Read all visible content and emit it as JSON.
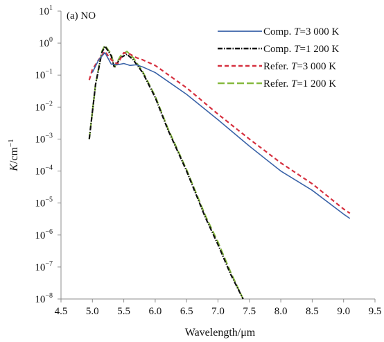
{
  "chart_data": {
    "type": "line",
    "panel_label": "(a) NO",
    "xlabel": "Wavelength/μm",
    "ylabel_main": "K",
    "ylabel_unit": "/cm",
    "ylabel_exp": "−1",
    "x_ticks": [
      4.5,
      5.0,
      5.5,
      6.0,
      6.5,
      7.0,
      7.5,
      8.0,
      8.5,
      9.0,
      9.5
    ],
    "x_tick_labels": [
      "4.5",
      "5.0",
      "5.5",
      "6.0",
      "6.5",
      "7.0",
      "7.5",
      "8.0",
      "8.5",
      "9.0",
      "9.5"
    ],
    "xlim": [
      4.5,
      9.5
    ],
    "y_scale": "log",
    "ylim": [
      1e-08,
      10
    ],
    "y_tick_exponents": [
      1,
      0,
      -1,
      -2,
      -3,
      -4,
      -5,
      -6,
      -7,
      -8
    ],
    "y_tick_base": "10",
    "y_tick_exponent_labels": [
      "1",
      "0",
      "−1",
      "−2",
      "−3",
      "−4",
      "−5",
      "−6",
      "−7",
      "−8"
    ],
    "legend_position": "top-right",
    "series": [
      {
        "name_prefix": "Comp. ",
        "name_var": "T",
        "name_suffix": "=3 000 K",
        "color": "#3a63a8",
        "style": "solid",
        "x": [
          5.0,
          5.1,
          5.2,
          5.3,
          5.4,
          5.5,
          5.6,
          5.7,
          5.8,
          6.0,
          6.5,
          7.0,
          7.5,
          8.0,
          8.5,
          9.0,
          9.1
        ],
        "y": [
          0.12,
          0.3,
          0.5,
          0.22,
          0.21,
          0.23,
          0.2,
          0.21,
          0.18,
          0.12,
          0.025,
          0.004,
          0.0006,
          0.0001,
          2.5e-05,
          4.5e-06,
          3.3e-06
        ]
      },
      {
        "name_prefix": "Comp. ",
        "name_var": "T",
        "name_suffix": "=1 200 K",
        "color": "#111111",
        "style": "dashdot",
        "x": [
          4.95,
          5.05,
          5.15,
          5.2,
          5.3,
          5.35,
          5.45,
          5.55,
          5.65,
          5.8,
          6.0,
          6.2,
          6.5,
          6.8,
          7.0,
          7.2,
          7.4
        ],
        "y": [
          0.001,
          0.05,
          0.5,
          0.8,
          0.4,
          0.17,
          0.35,
          0.45,
          0.3,
          0.12,
          0.02,
          0.002,
          0.0001,
          3.5e-06,
          5e-07,
          6e-08,
          1e-08
        ]
      },
      {
        "name_prefix": "Refer. ",
        "name_var": "T",
        "name_suffix": "=3 000 K",
        "color": "#d6303f",
        "style": "dashed",
        "x": [
          4.95,
          5.0,
          5.1,
          5.2,
          5.3,
          5.4,
          5.5,
          5.6,
          5.7,
          5.8,
          6.0,
          6.5,
          7.0,
          7.5,
          8.0,
          8.5,
          9.0,
          9.1
        ],
        "y": [
          0.07,
          0.15,
          0.3,
          0.55,
          0.3,
          0.22,
          0.5,
          0.45,
          0.35,
          0.3,
          0.2,
          0.04,
          0.006,
          0.001,
          0.00018,
          4e-05,
          6.5e-06,
          4.8e-06
        ]
      },
      {
        "name_prefix": "Refer. ",
        "name_var": "T",
        "name_suffix": "=1 200 K",
        "color": "#86b93e",
        "style": "dashed-long",
        "x": [
          4.95,
          5.05,
          5.15,
          5.2,
          5.3,
          5.35,
          5.45,
          5.55,
          5.65,
          5.8,
          6.0,
          6.2,
          6.5,
          6.8,
          7.0,
          7.2,
          7.4
        ],
        "y": [
          0.001,
          0.05,
          0.55,
          0.85,
          0.45,
          0.18,
          0.4,
          0.55,
          0.35,
          0.13,
          0.022,
          0.0022,
          0.00011,
          4e-06,
          6e-07,
          7e-08,
          1e-08
        ]
      }
    ]
  }
}
